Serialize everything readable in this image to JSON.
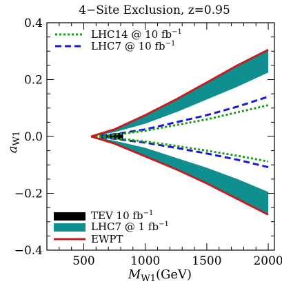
{
  "chart_data": {
    "type": "area",
    "title": "4−Site Exclusion, z=0.95",
    "xlabel_main": "M",
    "xlabel_sub": "W1",
    "xlabel_unit": "(GeV)",
    "ylabel_main": "a",
    "ylabel_sub": "W1",
    "xlim": [
      200,
      2050
    ],
    "ylim": [
      -0.4,
      0.4
    ],
    "xticks": [
      500,
      1000,
      1500,
      2000
    ],
    "xtick_labels": [
      "500",
      "1000",
      "1500",
      "2000"
    ],
    "yticks": [
      -0.4,
      -0.2,
      0.0,
      0.2,
      0.4
    ],
    "ytick_labels": [
      "−0.4",
      "−0.2",
      "0.0",
      "0.2",
      "0.4"
    ],
    "legend_top": [
      {
        "label": "LHC14  @ 10 fb",
        "sup": "−1",
        "style": "dotted",
        "color": "#1a9a1a"
      },
      {
        "label": "LHC7   @ 10 fb",
        "sup": "−1",
        "style": "dashed",
        "color": "#1a1ad6"
      }
    ],
    "legend_bottom": [
      {
        "label": "TEV 10 fb",
        "sup": "−1",
        "style": "fill",
        "color": "#000000"
      },
      {
        "label": "LHC7   @   1 fb",
        "sup": "−1",
        "style": "fill",
        "color": "#0f8f8f"
      },
      {
        "label": "EWPT",
        "style": "line",
        "color": "#c41e1e"
      }
    ],
    "series": [
      {
        "name": "EWPT",
        "color": "#c41e1e",
        "x": [
          560,
          750,
          1000,
          1250,
          1500,
          1750,
          2000
        ],
        "upper": [
          0.0,
          0.025,
          0.075,
          0.13,
          0.19,
          0.25,
          0.305
        ],
        "lower": [
          0.0,
          -0.025,
          -0.07,
          -0.115,
          -0.165,
          -0.22,
          -0.275
        ]
      },
      {
        "name": "LHC7 @ 1 fb−1 inner edge",
        "color": "#0f8f8f",
        "x": [
          560,
          750,
          1000,
          1250,
          1500,
          1750,
          2000
        ],
        "upper": [
          0.0,
          0.015,
          0.045,
          0.085,
          0.13,
          0.175,
          0.225
        ],
        "lower": [
          0.0,
          -0.015,
          -0.04,
          -0.075,
          -0.11,
          -0.15,
          -0.195
        ]
      },
      {
        "name": "LHC7 @ 10 fb−1",
        "color": "#1a1ad6",
        "x": [
          560,
          750,
          1000,
          1250,
          1500,
          1750,
          2000
        ],
        "upper": [
          0.0,
          0.008,
          0.025,
          0.05,
          0.075,
          0.105,
          0.14
        ],
        "lower": [
          0.0,
          -0.008,
          -0.022,
          -0.04,
          -0.06,
          -0.082,
          -0.108
        ]
      },
      {
        "name": "LHC14 @ 10 fb−1",
        "color": "#1a9a1a",
        "x": [
          560,
          750,
          1000,
          1250,
          1500,
          1750,
          2000
        ],
        "upper": [
          0.0,
          0.006,
          0.02,
          0.04,
          0.06,
          0.085,
          0.11
        ],
        "lower": [
          0.0,
          -0.006,
          -0.018,
          -0.033,
          -0.05,
          -0.068,
          -0.088
        ]
      },
      {
        "name": "TEV 10 fb−1",
        "color": "#000000",
        "x": [
          680,
          730,
          780,
          820
        ],
        "upper": [
          0.004,
          0.009,
          0.012,
          0.014
        ],
        "lower": [
          -0.004,
          -0.008,
          -0.011,
          -0.012
        ]
      }
    ]
  }
}
